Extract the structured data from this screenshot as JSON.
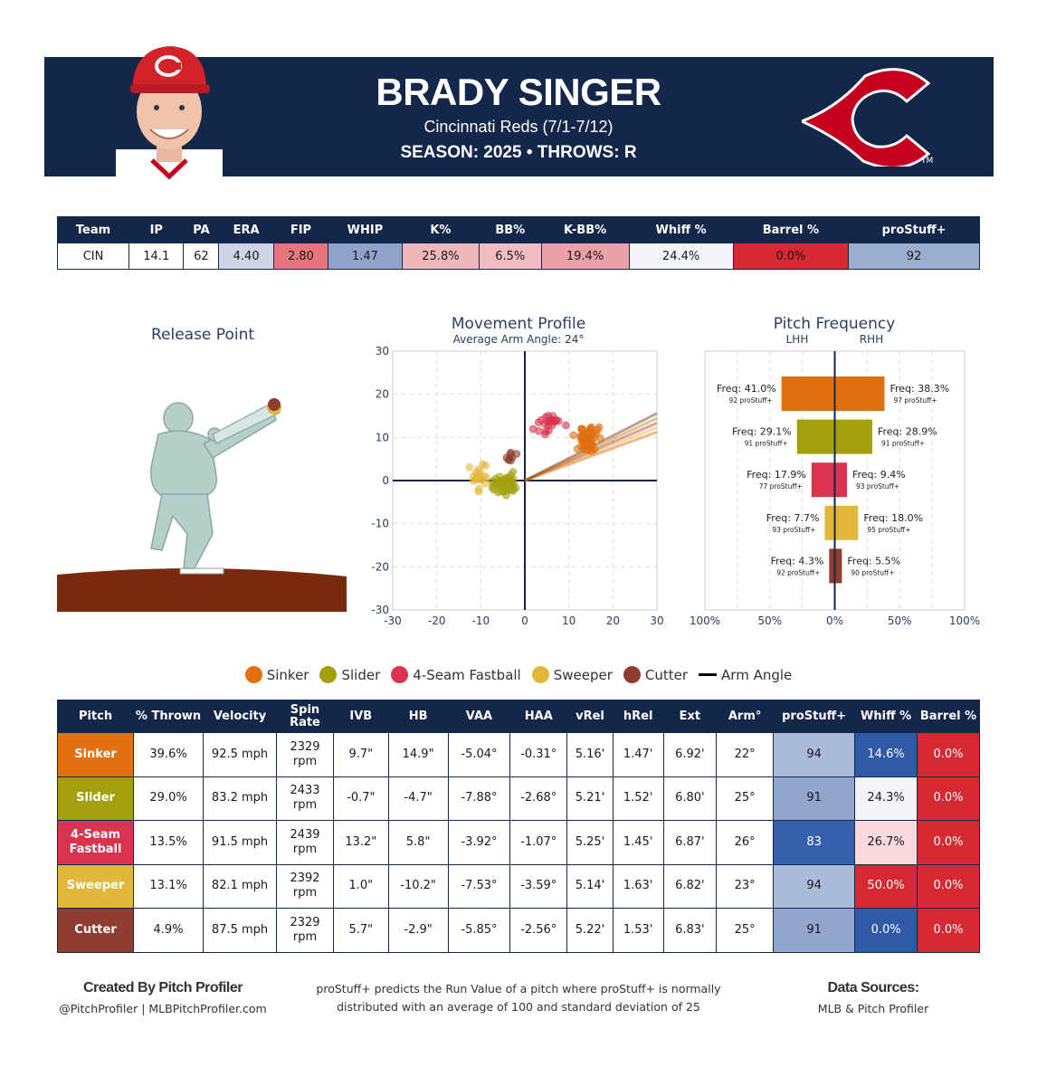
{
  "header": {
    "name": "BRADY SINGER",
    "subtitle": "Cincinnati Reds (7/1-7/12)",
    "season_line": "SEASON: 2025 • THROWS: R"
  },
  "stats": {
    "headers": [
      "Team",
      "IP",
      "PA",
      "ERA",
      "FIP",
      "WHIP",
      "K%",
      "BB%",
      "K-BB%",
      "Whiff %",
      "Barrel %",
      "proStuff+"
    ],
    "values": [
      "CIN",
      "14.1",
      "62",
      "4.40",
      "2.80",
      "1.47",
      "25.8%",
      "6.5%",
      "19.4%",
      "24.4%",
      "0.0%",
      "92"
    ],
    "colors": [
      "#ffffff",
      "#ffffff",
      "#ffffff",
      "#cdd5e6",
      "#e6757d",
      "#8fa3cb",
      "#f0b7bb",
      "#f1bdc1",
      "#eca1a7",
      "#f2f4f8",
      "#d52a33",
      "#9aaed2"
    ]
  },
  "release_point": {
    "title": "Release Point"
  },
  "movement": {
    "title": "Movement Profile",
    "subtitle": "Average Arm Angle: 24°",
    "ticks": [
      -30,
      -20,
      -10,
      0,
      10,
      20,
      30
    ]
  },
  "frequency": {
    "title": "Pitch Frequency",
    "lhh": "LHH",
    "rhh": "RHH",
    "xticks": [
      "100%",
      "50%",
      "0%",
      "50%",
      "100%"
    ]
  },
  "chart_data": [
    {
      "type": "scatter",
      "title": "Movement Profile",
      "subtitle": "Average Arm Angle: 24°",
      "xlim": [
        -30,
        30
      ],
      "ylim": [
        -30,
        30
      ],
      "arm_angle_deg": 24,
      "series": [
        {
          "name": "Sinker",
          "color": "#e07010",
          "center": [
            14.9,
            9.7
          ],
          "spread": [
            2.2,
            2.2
          ],
          "n": 60
        },
        {
          "name": "Slider",
          "color": "#a3a010",
          "center": [
            -4.7,
            -0.7
          ],
          "spread": [
            2.4,
            2.0
          ],
          "n": 45
        },
        {
          "name": "4-Seam Fastball",
          "color": "#d8334f",
          "center": [
            5.8,
            13.2
          ],
          "spread": [
            2.4,
            1.8
          ],
          "n": 22
        },
        {
          "name": "Sweeper",
          "color": "#e2b83c",
          "center": [
            -10.2,
            1.0
          ],
          "spread": [
            1.8,
            2.0
          ],
          "n": 20
        },
        {
          "name": "Cutter",
          "color": "#8e3d2e",
          "center": [
            -2.9,
            5.7
          ],
          "spread": [
            1.2,
            1.2
          ],
          "n": 8
        }
      ]
    },
    {
      "type": "bar",
      "title": "Pitch Frequency",
      "categories": [
        "Sinker",
        "Slider",
        "4-Seam Fastball",
        "Sweeper",
        "Cutter"
      ],
      "colors": [
        "#e07010",
        "#a3a010",
        "#d8334f",
        "#e2b83c",
        "#8e3d2e"
      ],
      "series": [
        {
          "name": "LHH",
          "values": [
            41.0,
            29.1,
            17.9,
            7.7,
            4.3
          ],
          "prostuff": [
            92,
            91,
            77,
            93,
            92
          ]
        },
        {
          "name": "RHH",
          "values": [
            38.3,
            28.9,
            9.4,
            18.0,
            5.5
          ],
          "prostuff": [
            97,
            91,
            93,
            95,
            90
          ]
        }
      ],
      "freq_prefix": "Freq: ",
      "prostuff_suffix": " proStuff+",
      "xlim": [
        -100,
        100
      ]
    }
  ],
  "legend": {
    "items": [
      {
        "label": "Sinker",
        "color": "#e07010"
      },
      {
        "label": "Slider",
        "color": "#a3a010"
      },
      {
        "label": "4-Seam Fastball",
        "color": "#d8334f"
      },
      {
        "label": "Sweeper",
        "color": "#e2b83c"
      },
      {
        "label": "Cutter",
        "color": "#8e3d2e"
      }
    ],
    "arm_angle_label": "Arm Angle"
  },
  "pitches": {
    "headers": [
      "Pitch",
      "% Thrown",
      "Velocity",
      "Spin Rate",
      "IVB",
      "HB",
      "VAA",
      "HAA",
      "vRel",
      "hRel",
      "Ext",
      "Arm°",
      "proStuff+",
      "Whiff %",
      "Barrel %"
    ],
    "rows": [
      {
        "name": "Sinker",
        "color": "#e07010",
        "cells": [
          "39.6%",
          "92.5 mph",
          "2329 rpm",
          "9.7\"",
          "14.9\"",
          "-5.04°",
          "-0.31°",
          "5.16'",
          "1.47'",
          "6.92'",
          "22°",
          "94",
          "14.6%",
          "0.0%"
        ],
        "prostuff_bg": "#abbbdb",
        "whiff_bg": "#2f5aa8",
        "whiff_fg": "#ffffff",
        "barrel_bg": "#d52a33"
      },
      {
        "name": "Slider",
        "color": "#a3a010",
        "cells": [
          "29.0%",
          "83.2 mph",
          "2433 rpm",
          "-0.7\"",
          "-4.7\"",
          "-7.88°",
          "-2.68°",
          "5.21'",
          "1.52'",
          "6.80'",
          "25°",
          "91",
          "24.3%",
          "0.0%"
        ],
        "prostuff_bg": "#91a5cd",
        "whiff_bg": "#f2f4f8",
        "whiff_fg": "#1a1a1a",
        "barrel_bg": "#d52a33"
      },
      {
        "name": "4-Seam Fastball",
        "color": "#d8334f",
        "cells": [
          "13.5%",
          "91.5 mph",
          "2439 rpm",
          "13.2\"",
          "5.8\"",
          "-3.92°",
          "-1.07°",
          "5.25'",
          "1.45'",
          "6.87'",
          "26°",
          "83",
          "26.7%",
          "0.0%"
        ],
        "prostuff_bg": "#3660ab",
        "prostuff_fg": "#ffffff",
        "whiff_bg": "#fadadd",
        "whiff_fg": "#1a1a1a",
        "barrel_bg": "#d52a33"
      },
      {
        "name": "Sweeper",
        "color": "#e2b83c",
        "cells": [
          "13.1%",
          "82.1 mph",
          "2392 rpm",
          "1.0\"",
          "-10.2\"",
          "-7.53°",
          "-3.59°",
          "5.14'",
          "1.63'",
          "6.82'",
          "23°",
          "94",
          "50.0%",
          "0.0%"
        ],
        "prostuff_bg": "#abbbdb",
        "whiff_bg": "#d52a33",
        "whiff_fg": "#ffffff",
        "barrel_bg": "#d52a33"
      },
      {
        "name": "Cutter",
        "color": "#8e3d2e",
        "cells": [
          "4.9%",
          "87.5 mph",
          "2329 rpm",
          "5.7\"",
          "-2.9\"",
          "-5.85°",
          "-2.56°",
          "5.22'",
          "1.53'",
          "6.83'",
          "25°",
          "91",
          "0.0%",
          "0.0%"
        ],
        "prostuff_bg": "#91a5cd",
        "whiff_bg": "#2f5aa8",
        "whiff_fg": "#ffffff",
        "barrel_bg": "#d52a33"
      }
    ]
  },
  "footer": {
    "left_title": "Created By Pitch Profiler",
    "left_sub": "@PitchProfiler | MLBPitchProfiler.com",
    "mid_line1": "proStuff+ predicts the Run Value of a pitch where proStuff+ is normally",
    "mid_line2": "distributed with an average of 100 and standard deviation of 25",
    "right_title": "Data Sources:",
    "right_sub": "MLB & Pitch Profiler"
  }
}
